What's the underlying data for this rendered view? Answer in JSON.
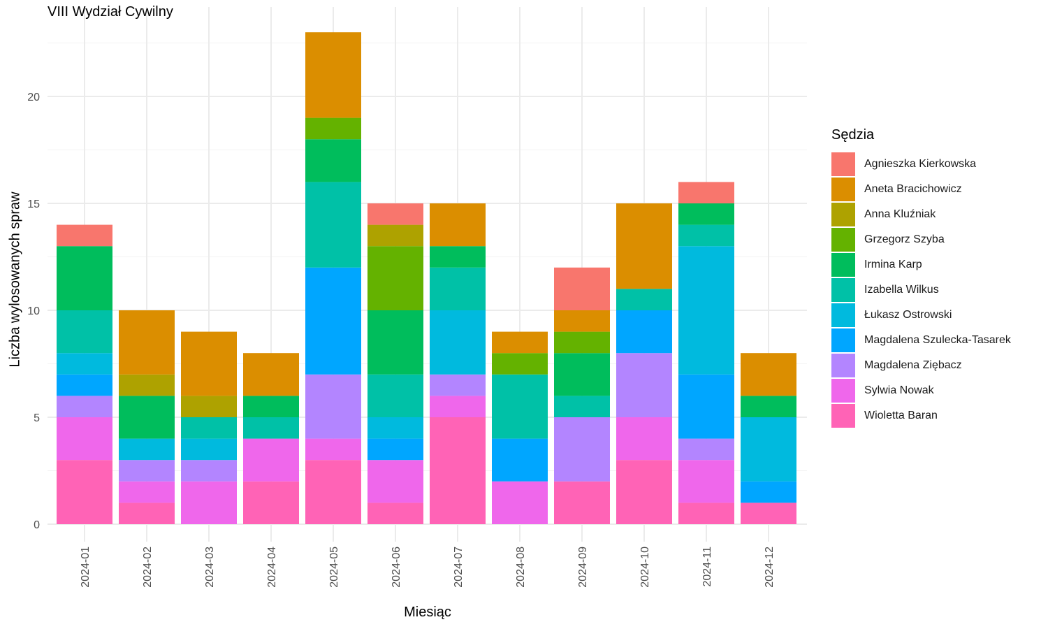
{
  "title": "VIII Wydział Cywilny",
  "chart_data": {
    "type": "bar",
    "stacked": true,
    "title": "VIII Wydział Cywilny",
    "xlabel": "Miesiąc",
    "ylabel": "Liczba wylosowanych spraw",
    "legend_title": "Sędzia",
    "legend_position": "right",
    "grid": true,
    "ylim": [
      0,
      24
    ],
    "yticks": [
      0,
      5,
      10,
      15,
      20
    ],
    "categories": [
      "2024-01",
      "2024-02",
      "2024-03",
      "2024-04",
      "2024-05",
      "2024-06",
      "2024-07",
      "2024-08",
      "2024-09",
      "2024-10",
      "2024-11",
      "2024-12"
    ],
    "series": [
      {
        "name": "Agnieszka Kierkowska",
        "color": "#F8766D",
        "values": [
          1,
          0,
          0,
          0,
          0,
          1,
          0,
          0,
          2,
          0,
          1,
          0
        ]
      },
      {
        "name": "Aneta Bracichowicz",
        "color": "#DB8E00",
        "values": [
          0,
          3,
          3,
          2,
          4,
          0,
          2,
          1,
          1,
          4,
          0,
          2
        ]
      },
      {
        "name": "Anna Kluźniak",
        "color": "#AEA200",
        "values": [
          0,
          1,
          1,
          0,
          0,
          1,
          0,
          0,
          0,
          0,
          0,
          0
        ]
      },
      {
        "name": "Grzegorz Szyba",
        "color": "#64B200",
        "values": [
          0,
          0,
          0,
          0,
          1,
          3,
          0,
          1,
          1,
          0,
          0,
          0
        ]
      },
      {
        "name": "Irmina Karp",
        "color": "#00BD5C",
        "values": [
          3,
          2,
          0,
          1,
          2,
          3,
          1,
          0,
          2,
          0,
          1,
          1
        ]
      },
      {
        "name": "Izabella Wilkus",
        "color": "#00C1A7",
        "values": [
          2,
          0,
          1,
          1,
          4,
          2,
          2,
          3,
          1,
          1,
          1,
          0
        ]
      },
      {
        "name": "Łukasz Ostrowski",
        "color": "#00BADE",
        "values": [
          1,
          1,
          1,
          0,
          0,
          1,
          3,
          0,
          0,
          0,
          6,
          3
        ]
      },
      {
        "name": "Magdalena Szulecka-Tasarek",
        "color": "#00A6FF",
        "values": [
          1,
          0,
          0,
          0,
          5,
          1,
          0,
          2,
          0,
          2,
          3,
          1
        ]
      },
      {
        "name": "Magdalena Ziębacz",
        "color": "#B385FF",
        "values": [
          1,
          1,
          1,
          0,
          3,
          0,
          1,
          0,
          3,
          3,
          1,
          0
        ]
      },
      {
        "name": "Sylwia Nowak",
        "color": "#EF67EB",
        "values": [
          2,
          1,
          2,
          2,
          1,
          2,
          1,
          2,
          0,
          2,
          2,
          0
        ]
      },
      {
        "name": "Wioletta Baran",
        "color": "#FF63B6",
        "values": [
          3,
          1,
          0,
          2,
          3,
          1,
          5,
          0,
          2,
          3,
          1,
          1
        ]
      }
    ]
  }
}
